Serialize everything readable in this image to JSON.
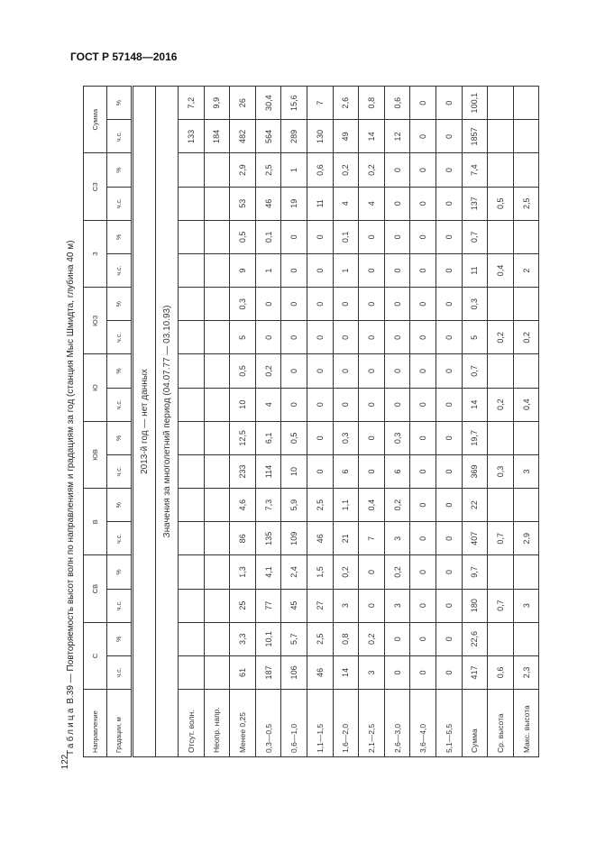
{
  "document_header": "ГОСТ Р 57148—2016",
  "page_number": "122",
  "caption": {
    "prefix": "Таблица",
    "text": " В.39 — Повторяемость высот волн по направлениям и градациям за год (станция Мыс Шмидта, глубина 40 м)"
  },
  "table": {
    "corner_top": "Направление",
    "corner_bottom": "Градации, м",
    "directions": [
      "С",
      "СВ",
      "В",
      "ЮВ",
      "Ю",
      "ЮЗ",
      "З",
      "СЗ",
      "Сумма"
    ],
    "sub_headers": [
      "ч.с.",
      "%"
    ],
    "span_rows": [
      "2013-й год — нет данных",
      "Значения за многолетний период (04.07.77 — 03.10.93)"
    ],
    "rows": [
      {
        "label": "Отсут. волн.",
        "values": [
          "",
          "",
          "",
          "",
          "",
          "",
          "",
          "",
          "",
          "",
          "",
          "",
          "",
          "",
          "",
          "",
          "133",
          "7,2"
        ]
      },
      {
        "label": "Неопр. напр.",
        "values": [
          "",
          "",
          "",
          "",
          "",
          "",
          "",
          "",
          "",
          "",
          "",
          "",
          "",
          "",
          "",
          "",
          "184",
          "9,9"
        ]
      },
      {
        "label": "Менее 0,25",
        "values": [
          "61",
          "3,3",
          "25",
          "1,3",
          "86",
          "4,6",
          "233",
          "12,5",
          "10",
          "0,5",
          "5",
          "0,3",
          "9",
          "0,5",
          "53",
          "2,9",
          "482",
          "26"
        ]
      },
      {
        "label": "0,3—0,5",
        "values": [
          "187",
          "10,1",
          "77",
          "4,1",
          "135",
          "7,3",
          "114",
          "6,1",
          "4",
          "0,2",
          "0",
          "0",
          "1",
          "0,1",
          "46",
          "2,5",
          "564",
          "30,4"
        ]
      },
      {
        "label": "0,6—1,0",
        "values": [
          "106",
          "5,7",
          "45",
          "2,4",
          "109",
          "5,9",
          "10",
          "0,5",
          "0",
          "0",
          "0",
          "0",
          "0",
          "0",
          "19",
          "1",
          "289",
          "15,6"
        ]
      },
      {
        "label": "1,1—1,5",
        "values": [
          "46",
          "2,5",
          "27",
          "1,5",
          "46",
          "2,5",
          "0",
          "0",
          "0",
          "0",
          "0",
          "0",
          "0",
          "0",
          "11",
          "0,6",
          "130",
          "7"
        ]
      },
      {
        "label": "1,6—2,0",
        "values": [
          "14",
          "0,8",
          "3",
          "0,2",
          "21",
          "1,1",
          "6",
          "0,3",
          "0",
          "0",
          "0",
          "0",
          "1",
          "0,1",
          "4",
          "0,2",
          "49",
          "2,6"
        ]
      },
      {
        "label": "2,1—2,5",
        "values": [
          "3",
          "0,2",
          "0",
          "0",
          "7",
          "0,4",
          "0",
          "0",
          "0",
          "0",
          "0",
          "0",
          "0",
          "0",
          "4",
          "0,2",
          "14",
          "0,8"
        ]
      },
      {
        "label": "2,6—3,0",
        "values": [
          "0",
          "0",
          "3",
          "0,2",
          "3",
          "0,2",
          "6",
          "0,3",
          "0",
          "0",
          "0",
          "0",
          "0",
          "0",
          "0",
          "0",
          "12",
          "0,6"
        ]
      },
      {
        "label": "3,6—4,0",
        "values": [
          "0",
          "0",
          "0",
          "0",
          "0",
          "0",
          "0",
          "0",
          "0",
          "0",
          "0",
          "0",
          "0",
          "0",
          "0",
          "0",
          "0",
          "0"
        ]
      },
      {
        "label": "5,1—5,5",
        "values": [
          "0",
          "0",
          "0",
          "0",
          "0",
          "0",
          "0",
          "0",
          "0",
          "0",
          "0",
          "0",
          "0",
          "0",
          "0",
          "0",
          "0",
          "0"
        ]
      },
      {
        "label": "Сумма",
        "values": [
          "417",
          "22,6",
          "180",
          "9,7",
          "407",
          "22",
          "369",
          "19,7",
          "14",
          "0,7",
          "5",
          "0,3",
          "11",
          "0,7",
          "137",
          "7,4",
          "1857",
          "100,1"
        ]
      },
      {
        "label": "Ср. высота",
        "values": [
          "0,6",
          "",
          "0,7",
          "",
          "0,7",
          "",
          "0,3",
          "",
          "0,2",
          "",
          "0,2",
          "",
          "0,4",
          "",
          "0,5",
          "",
          "",
          ""
        ]
      },
      {
        "label": "Макс. высота",
        "values": [
          "2,3",
          "",
          "3",
          "",
          "2,9",
          "",
          "3",
          "",
          "0,4",
          "",
          "0,2",
          "",
          "2",
          "",
          "2,5",
          "",
          "",
          ""
        ]
      }
    ]
  }
}
